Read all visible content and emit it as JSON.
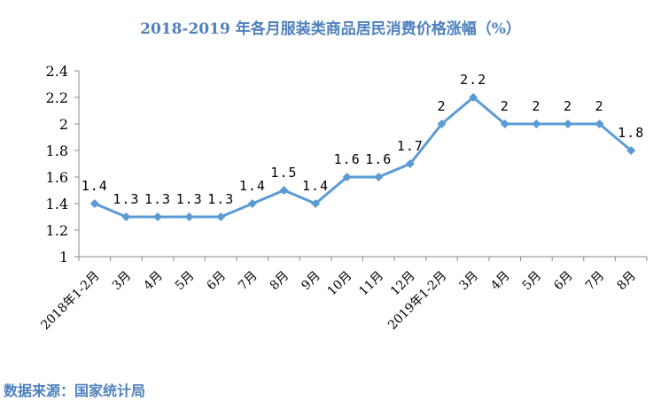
{
  "chart_data": {
    "type": "line",
    "title": "2018-2019 年各月服装类商品居民消费价格涨幅（%）",
    "categories": [
      "2018年1-2月",
      "3月",
      "4月",
      "5月",
      "6月",
      "7月",
      "8月",
      "9月",
      "10月",
      "11月",
      "12月",
      "2019年1-2月",
      "3月",
      "4月",
      "5月",
      "6月",
      "7月",
      "8月"
    ],
    "values": [
      1.4,
      1.3,
      1.3,
      1.3,
      1.3,
      1.4,
      1.5,
      1.4,
      1.6,
      1.6,
      1.7,
      2,
      2.2,
      2,
      2,
      2,
      2,
      1.8
    ],
    "ylim": [
      1,
      2.4
    ],
    "yticks": [
      "1",
      "1.2",
      "1.4",
      "1.6",
      "1.8",
      "2",
      "2.2",
      "2.4"
    ],
    "grid": false,
    "line_color": "#5b9bd5",
    "marker": "diamond",
    "data_labels": true
  },
  "source": "数据来源：国家统计局"
}
